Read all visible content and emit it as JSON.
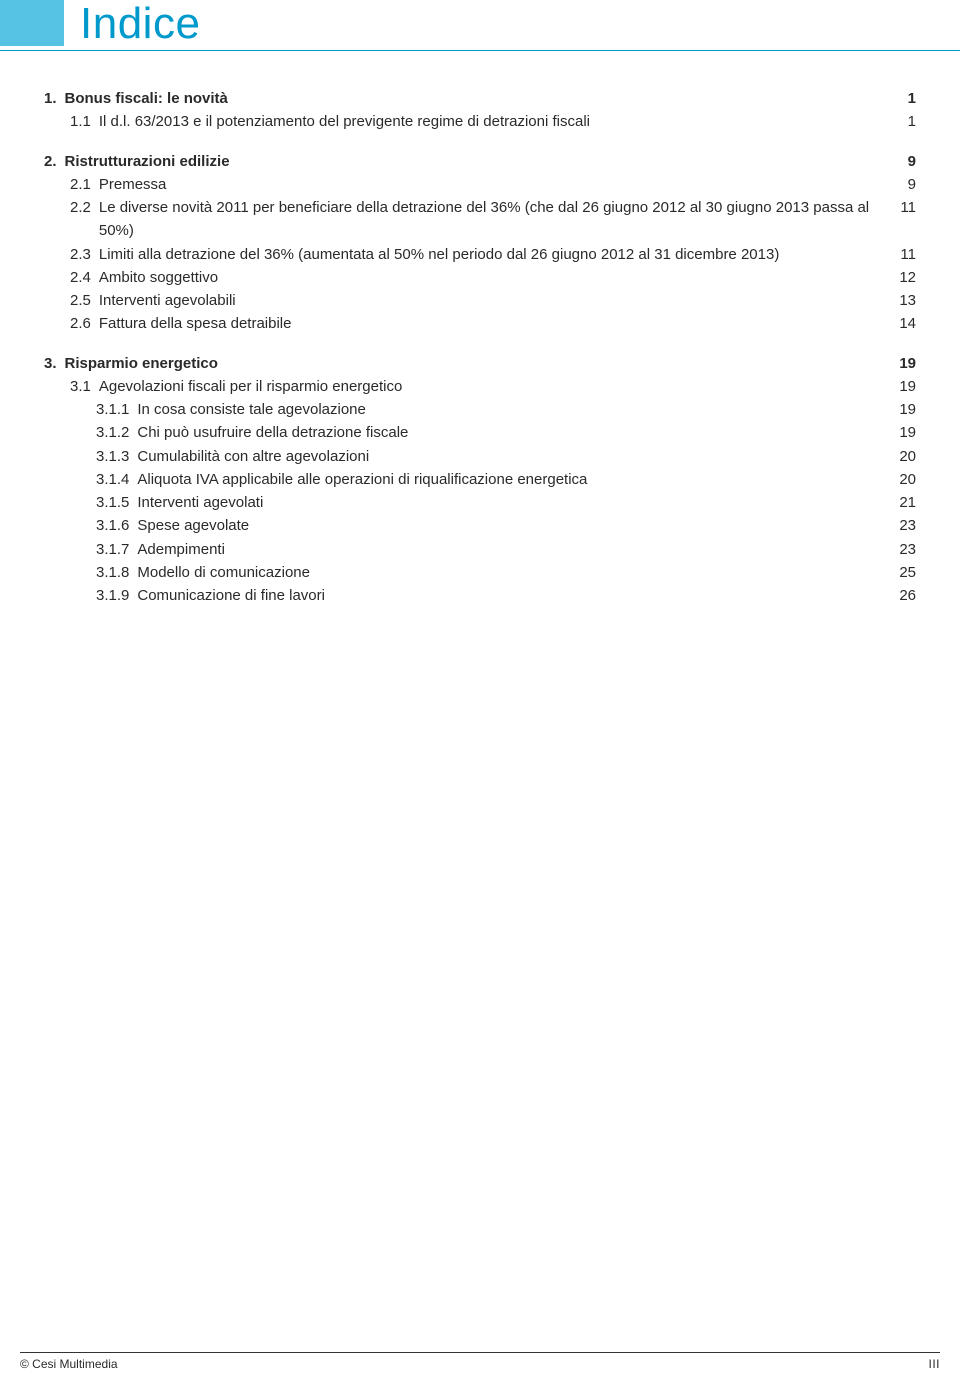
{
  "header": {
    "title": "Indice",
    "square_color": "#56c3e4",
    "title_color": "#0099cc",
    "title_fontsize": 44
  },
  "toc": {
    "sections": [
      {
        "num": "1.",
        "title": "Bonus fiscali: le novità",
        "page": "1",
        "items": [
          {
            "num": "1.1",
            "text": "Il d.l. 63/2013 e il potenziamento del previgente regime di detrazioni fiscali",
            "page": "1"
          }
        ]
      },
      {
        "num": "2.",
        "title": "Ristrutturazioni edilizie",
        "page": "9",
        "items": [
          {
            "num": "2.1",
            "text": "Premessa",
            "page": "9"
          },
          {
            "num": "2.2",
            "text": "Le diverse novità 2011 per beneficiare della detrazione del 36% (che dal 26 giugno 2012 al 30 giugno 2013 passa al 50%)",
            "page": "11"
          },
          {
            "num": "2.3",
            "text": "Limiti alla detrazione del 36% (aumentata al 50% nel periodo dal 26 giugno 2012 al 31 dicembre 2013)",
            "page": "11"
          },
          {
            "num": "2.4",
            "text": "Ambito soggettivo",
            "page": "12"
          },
          {
            "num": "2.5",
            "text": "Interventi agevolabili",
            "page": "13"
          },
          {
            "num": "2.6",
            "text": "Fattura della spesa detraibile",
            "page": "14"
          }
        ]
      },
      {
        "num": "3.",
        "title": "Risparmio energetico",
        "page": "19",
        "items": [
          {
            "num": "3.1",
            "text": "Agevolazioni fiscali per il risparmio energetico",
            "page": "19",
            "subitems": [
              {
                "num": "3.1.1",
                "text": "In cosa consiste tale agevolazione",
                "page": "19"
              },
              {
                "num": "3.1.2",
                "text": "Chi può usufruire della detrazione fiscale",
                "page": "19"
              },
              {
                "num": "3.1.3",
                "text": "Cumulabilità con altre agevolazioni",
                "page": "20"
              },
              {
                "num": "3.1.4",
                "text": "Aliquota IVA applicabile alle operazioni di riqualificazione energetica",
                "page": "20"
              },
              {
                "num": "3.1.5",
                "text": "Interventi agevolati",
                "page": "21"
              },
              {
                "num": "3.1.6",
                "text": "Spese agevolate",
                "page": "23"
              },
              {
                "num": "3.1.7",
                "text": "Adempimenti",
                "page": "23"
              },
              {
                "num": "3.1.8",
                "text": "Modello di comunicazione",
                "page": "25"
              },
              {
                "num": "3.1.9",
                "text": "Comunicazione di fine lavori",
                "page": "26"
              }
            ]
          }
        ]
      }
    ]
  },
  "footer": {
    "left": "© Cesi Multimedia",
    "right": "III"
  },
  "style": {
    "text_color": "#2a2a2a",
    "font_size": 15,
    "background": "#ffffff",
    "rule_color": "#0099cc"
  }
}
